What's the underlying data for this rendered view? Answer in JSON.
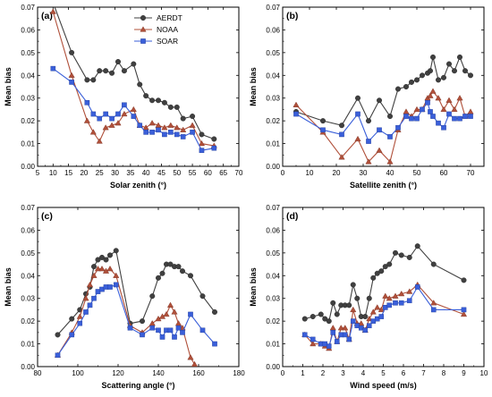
{
  "chart_data": [
    {
      "type": "line",
      "panel_label": "(a)",
      "xlabel": "Solar zenith (°)",
      "ylabel": "Mean bias",
      "xlim": [
        5,
        70
      ],
      "ylim": [
        0,
        0.07
      ],
      "xticks": [
        5,
        10,
        15,
        20,
        25,
        30,
        35,
        40,
        45,
        50,
        55,
        60,
        65,
        70
      ],
      "yticks": [
        0.0,
        0.01,
        0.02,
        0.03,
        0.04,
        0.05,
        0.06,
        0.07
      ],
      "xtick_labels": [
        "5",
        "10",
        "15",
        "20",
        "25",
        "30",
        "35",
        "40",
        "45",
        "50",
        "55",
        "60",
        "65",
        "70"
      ],
      "ytick_labels": [
        "0.00",
        "0.01",
        "0.02",
        "0.03",
        "0.04",
        "0.05",
        "0.06",
        "0.07"
      ],
      "legend": {
        "position": "top-right",
        "entries": [
          "AERDT",
          "NOAA",
          "SOAR"
        ]
      },
      "series": [
        {
          "name": "AERDT",
          "color": "#404040",
          "marker": "circle",
          "x": [
            10,
            16,
            21,
            23,
            25,
            27,
            29,
            31,
            33,
            36,
            38,
            40,
            42,
            44,
            46,
            48,
            50,
            52,
            55,
            58,
            62
          ],
          "y": [
            0.072,
            0.05,
            0.038,
            0.038,
            0.042,
            0.042,
            0.041,
            0.046,
            0.042,
            0.045,
            0.036,
            0.031,
            0.029,
            0.029,
            0.028,
            0.026,
            0.026,
            0.021,
            0.022,
            0.014,
            0.012
          ]
        },
        {
          "name": "NOAA",
          "color": "#b0503a",
          "marker": "triangle",
          "x": [
            10,
            16,
            21,
            23,
            25,
            27,
            29,
            31,
            33,
            36,
            38,
            40,
            42,
            44,
            46,
            48,
            50,
            52,
            55,
            58,
            62
          ],
          "y": [
            0.068,
            0.04,
            0.02,
            0.015,
            0.011,
            0.017,
            0.018,
            0.019,
            0.023,
            0.025,
            0.018,
            0.017,
            0.019,
            0.018,
            0.017,
            0.018,
            0.017,
            0.016,
            0.018,
            0.01,
            0.009
          ]
        },
        {
          "name": "SOAR",
          "color": "#3a5fd9",
          "marker": "square",
          "x": [
            10,
            16,
            21,
            23,
            25,
            27,
            29,
            31,
            33,
            36,
            38,
            40,
            42,
            44,
            46,
            48,
            50,
            52,
            55,
            58,
            62
          ],
          "y": [
            0.043,
            0.037,
            0.028,
            0.023,
            0.021,
            0.023,
            0.021,
            0.023,
            0.027,
            0.022,
            0.018,
            0.015,
            0.015,
            0.016,
            0.014,
            0.015,
            0.014,
            0.013,
            0.015,
            0.007,
            0.008
          ]
        }
      ]
    },
    {
      "type": "line",
      "panel_label": "(b)",
      "xlabel": "Satellite zenith (°)",
      "ylabel": "Mean bias",
      "xlim": [
        0,
        75
      ],
      "ylim": [
        0,
        0.07
      ],
      "xticks": [
        0,
        10,
        20,
        30,
        40,
        50,
        60,
        70
      ],
      "yticks": [
        0.0,
        0.01,
        0.02,
        0.03,
        0.04,
        0.05,
        0.06,
        0.07
      ],
      "xtick_labels": [
        "0",
        "10",
        "20",
        "30",
        "40",
        "50",
        "60",
        "70"
      ],
      "ytick_labels": [
        "0.00",
        "0.01",
        "0.02",
        "0.03",
        "0.04",
        "0.05",
        "0.06",
        "0.07"
      ],
      "series": [
        {
          "name": "AERDT",
          "color": "#404040",
          "marker": "circle",
          "x": [
            5,
            15,
            22,
            28,
            32,
            36,
            40,
            43,
            46,
            48,
            50,
            52,
            54,
            55,
            56,
            58,
            60,
            62,
            64,
            66,
            68,
            70
          ],
          "y": [
            0.024,
            0.02,
            0.018,
            0.03,
            0.02,
            0.029,
            0.022,
            0.034,
            0.035,
            0.037,
            0.038,
            0.04,
            0.041,
            0.042,
            0.048,
            0.038,
            0.039,
            0.045,
            0.042,
            0.048,
            0.042,
            0.04
          ]
        },
        {
          "name": "NOAA",
          "color": "#b0503a",
          "marker": "triangle",
          "x": [
            5,
            15,
            22,
            28,
            32,
            36,
            40,
            43,
            46,
            48,
            50,
            52,
            54,
            55,
            56,
            58,
            60,
            62,
            64,
            66,
            68,
            70
          ],
          "y": [
            0.027,
            0.015,
            0.004,
            0.012,
            0.002,
            0.007,
            0.002,
            0.016,
            0.024,
            0.022,
            0.025,
            0.025,
            0.03,
            0.031,
            0.033,
            0.03,
            0.025,
            0.029,
            0.025,
            0.03,
            0.022,
            0.024
          ]
        },
        {
          "name": "SOAR",
          "color": "#3a5fd9",
          "marker": "square",
          "x": [
            5,
            15,
            22,
            28,
            32,
            36,
            40,
            43,
            46,
            48,
            50,
            52,
            54,
            55,
            56,
            58,
            60,
            62,
            64,
            66,
            68,
            70
          ],
          "y": [
            0.023,
            0.016,
            0.014,
            0.023,
            0.011,
            0.016,
            0.013,
            0.017,
            0.022,
            0.021,
            0.021,
            0.025,
            0.028,
            0.024,
            0.022,
            0.019,
            0.017,
            0.023,
            0.021,
            0.021,
            0.022,
            0.022
          ]
        }
      ]
    },
    {
      "type": "line",
      "panel_label": "(c)",
      "xlabel": "Scattering angle (°)",
      "ylabel": "Mean bias",
      "xlim": [
        80,
        180
      ],
      "ylim": [
        0,
        0.07
      ],
      "xticks": [
        80,
        100,
        120,
        140,
        160,
        180
      ],
      "yticks": [
        0.0,
        0.01,
        0.02,
        0.03,
        0.04,
        0.05,
        0.06,
        0.07
      ],
      "xtick_labels": [
        "80",
        "100",
        "120",
        "140",
        "160",
        "180"
      ],
      "ytick_labels": [
        "0.00",
        "0.01",
        "0.02",
        "0.03",
        "0.04",
        "0.05",
        "0.06",
        "0.07"
      ],
      "series": [
        {
          "name": "AERDT",
          "color": "#404040",
          "marker": "circle",
          "x": [
            90,
            97,
            101,
            104,
            106,
            108,
            110,
            112,
            114,
            116,
            119,
            126,
            132,
            137,
            140,
            142,
            144,
            146,
            148,
            150,
            152,
            156,
            162,
            168
          ],
          "y": [
            0.014,
            0.021,
            0.025,
            0.032,
            0.035,
            0.044,
            0.047,
            0.048,
            0.047,
            0.049,
            0.051,
            0.019,
            0.02,
            0.031,
            0.039,
            0.041,
            0.045,
            0.045,
            0.044,
            0.044,
            0.042,
            0.04,
            0.031,
            0.024
          ]
        },
        {
          "name": "NOAA",
          "color": "#b0503a",
          "marker": "triangle",
          "x": [
            90,
            97,
            101,
            104,
            106,
            108,
            110,
            112,
            114,
            116,
            119,
            126,
            132,
            137,
            140,
            142,
            144,
            146,
            148,
            150,
            152,
            156,
            158
          ],
          "y": [
            0.005,
            0.015,
            0.022,
            0.03,
            0.036,
            0.04,
            0.043,
            0.043,
            0.042,
            0.043,
            0.04,
            0.018,
            0.015,
            0.019,
            0.021,
            0.022,
            0.023,
            0.027,
            0.024,
            0.019,
            0.017,
            0.004,
            0.001
          ]
        },
        {
          "name": "SOAR",
          "color": "#3a5fd9",
          "marker": "square",
          "x": [
            90,
            97,
            101,
            104,
            106,
            108,
            110,
            112,
            114,
            116,
            119,
            126,
            132,
            137,
            140,
            142,
            144,
            146,
            148,
            150,
            152,
            156,
            162,
            168
          ],
          "y": [
            0.005,
            0.014,
            0.019,
            0.024,
            0.027,
            0.03,
            0.033,
            0.034,
            0.035,
            0.035,
            0.036,
            0.017,
            0.014,
            0.017,
            0.016,
            0.013,
            0.016,
            0.016,
            0.013,
            0.017,
            0.015,
            0.023,
            0.016,
            0.01
          ]
        }
      ]
    },
    {
      "type": "line",
      "panel_label": "(d)",
      "xlabel": "Wind speed (m/s)",
      "ylabel": "Mean bias",
      "xlim": [
        0,
        10
      ],
      "ylim": [
        0,
        0.07
      ],
      "xticks": [
        0,
        1,
        2,
        3,
        4,
        5,
        6,
        7,
        8,
        9,
        10
      ],
      "yticks": [
        0.0,
        0.01,
        0.02,
        0.03,
        0.04,
        0.05,
        0.06,
        0.07
      ],
      "xtick_labels": [
        "0",
        "1",
        "2",
        "3",
        "4",
        "5",
        "6",
        "7",
        "8",
        "9",
        "10"
      ],
      "ytick_labels": [
        "0.00",
        "0.01",
        "0.02",
        "0.03",
        "0.04",
        "0.05",
        "0.06",
        "0.07"
      ],
      "series": [
        {
          "name": "AERDT",
          "color": "#404040",
          "marker": "circle",
          "x": [
            1.1,
            1.5,
            1.9,
            2.1,
            2.3,
            2.5,
            2.7,
            2.9,
            3.1,
            3.3,
            3.5,
            3.7,
            3.9,
            4.1,
            4.3,
            4.5,
            4.7,
            4.9,
            5.1,
            5.3,
            5.6,
            5.9,
            6.3,
            6.7,
            7.5,
            9.0
          ],
          "y": [
            0.021,
            0.022,
            0.023,
            0.021,
            0.02,
            0.028,
            0.023,
            0.027,
            0.027,
            0.027,
            0.036,
            0.03,
            0.022,
            0.022,
            0.03,
            0.039,
            0.041,
            0.042,
            0.044,
            0.045,
            0.05,
            0.049,
            0.048,
            0.053,
            0.045,
            0.038
          ]
        },
        {
          "name": "NOAA",
          "color": "#b0503a",
          "marker": "triangle",
          "x": [
            1.1,
            1.5,
            1.9,
            2.1,
            2.3,
            2.5,
            2.7,
            2.9,
            3.1,
            3.3,
            3.5,
            3.7,
            3.9,
            4.1,
            4.3,
            4.5,
            4.7,
            4.9,
            5.1,
            5.3,
            5.6,
            5.9,
            6.3,
            6.7,
            7.5,
            9.0
          ],
          "y": [
            0.014,
            0.01,
            0.01,
            0.009,
            0.008,
            0.017,
            0.011,
            0.017,
            0.017,
            0.012,
            0.025,
            0.019,
            0.019,
            0.016,
            0.021,
            0.024,
            0.026,
            0.025,
            0.031,
            0.03,
            0.031,
            0.032,
            0.033,
            0.036,
            0.028,
            0.023
          ]
        },
        {
          "name": "SOAR",
          "color": "#3a5fd9",
          "marker": "square",
          "x": [
            1.1,
            1.5,
            1.9,
            2.1,
            2.3,
            2.5,
            2.7,
            2.9,
            3.1,
            3.3,
            3.5,
            3.7,
            3.9,
            4.1,
            4.3,
            4.5,
            4.7,
            4.9,
            5.1,
            5.3,
            5.6,
            5.9,
            6.3,
            6.7,
            7.5,
            9.0
          ],
          "y": [
            0.014,
            0.012,
            0.01,
            0.01,
            0.009,
            0.015,
            0.011,
            0.014,
            0.014,
            0.012,
            0.02,
            0.018,
            0.017,
            0.016,
            0.018,
            0.02,
            0.021,
            0.022,
            0.026,
            0.027,
            0.028,
            0.028,
            0.029,
            0.035,
            0.025,
            0.025
          ]
        }
      ]
    }
  ]
}
